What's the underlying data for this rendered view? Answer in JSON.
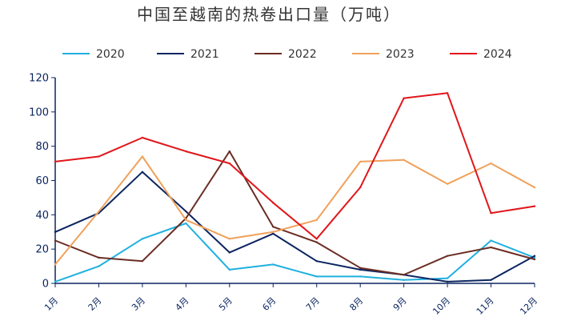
{
  "chart_data": {
    "type": "line",
    "title": "中国至越南的热卷出口量（万吨）",
    "categories": [
      "1月",
      "2月",
      "3月",
      "4月",
      "5月",
      "6月",
      "7月",
      "8月",
      "9月",
      "10月",
      "11月",
      "12月"
    ],
    "ylim": [
      0,
      120
    ],
    "yticks": [
      0,
      20,
      40,
      60,
      80,
      100,
      120
    ],
    "grid": false,
    "legend_position": "top",
    "series": [
      {
        "name": "2020",
        "color": "#1fb0e0",
        "values": [
          1,
          10,
          26,
          35,
          8,
          11,
          4,
          4,
          2,
          3,
          25,
          15
        ]
      },
      {
        "name": "2021",
        "color": "#0b2560",
        "values": [
          30,
          41,
          65,
          42,
          18,
          29,
          13,
          8,
          5,
          1,
          2,
          16
        ]
      },
      {
        "name": "2022",
        "color": "#6b2d24",
        "values": [
          25,
          15,
          13,
          38,
          77,
          33,
          24,
          9,
          5,
          16,
          21,
          14
        ]
      },
      {
        "name": "2023",
        "color": "#f0a15a",
        "values": [
          11,
          42,
          74,
          37,
          26,
          30,
          37,
          71,
          72,
          58,
          70,
          56
        ]
      },
      {
        "name": "2024",
        "color": "#e0161b",
        "values": [
          71,
          74,
          85,
          77,
          70,
          47,
          26,
          56,
          108,
          111,
          41,
          45
        ]
      }
    ]
  }
}
